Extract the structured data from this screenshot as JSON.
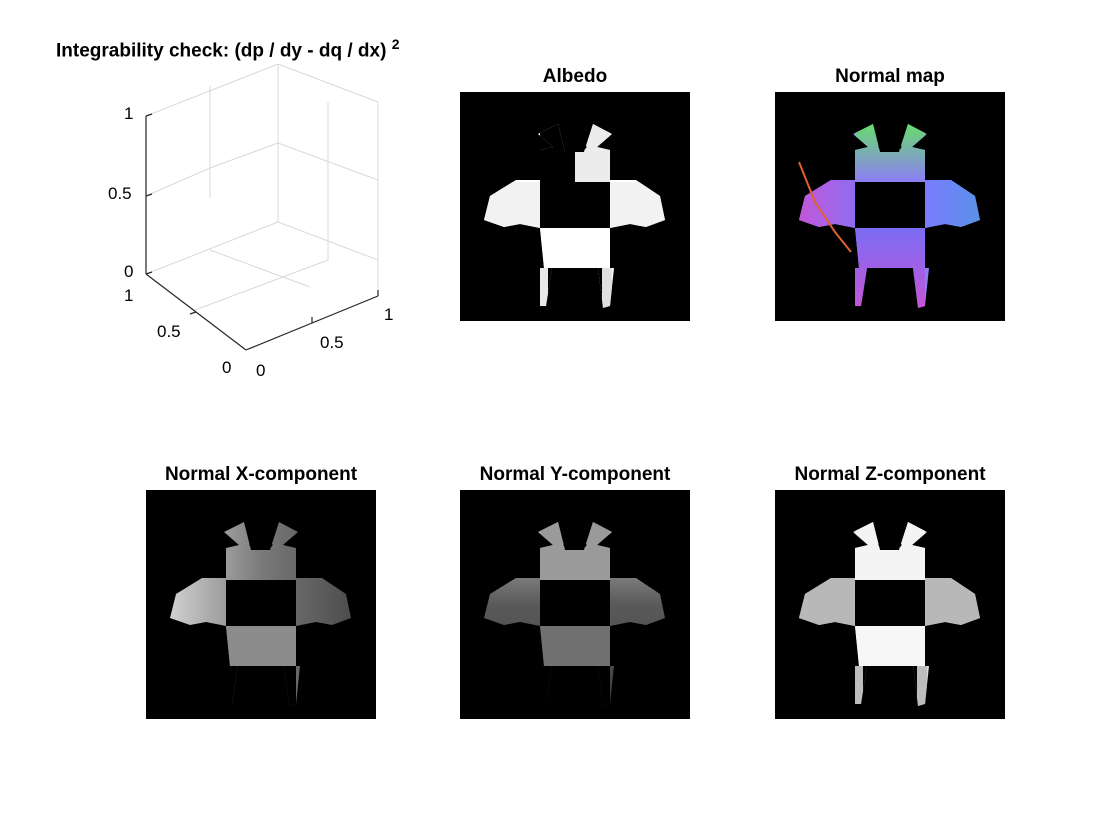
{
  "figure": {
    "plot3d": {
      "title_main": "Integrability check: (dp / dy - dq / dx)",
      "title_sup": "2",
      "z_ticks": [
        "1",
        "0.5",
        "0"
      ],
      "y_ticks": [
        "1",
        "0.5",
        "0"
      ],
      "x_ticks": [
        "0",
        "0.5",
        "1"
      ]
    },
    "panels": [
      {
        "id": "albedo",
        "title": "Albedo"
      },
      {
        "id": "normal-map",
        "title": "Normal map"
      },
      {
        "id": "normal-x",
        "title": "Normal X-component"
      },
      {
        "id": "normal-y",
        "title": "Normal Y-component"
      },
      {
        "id": "normal-z",
        "title": "Normal Z-component"
      }
    ]
  },
  "colors": {
    "axis": "#262626",
    "grid": "#d9d9d9",
    "panel_bg": "#000000"
  }
}
